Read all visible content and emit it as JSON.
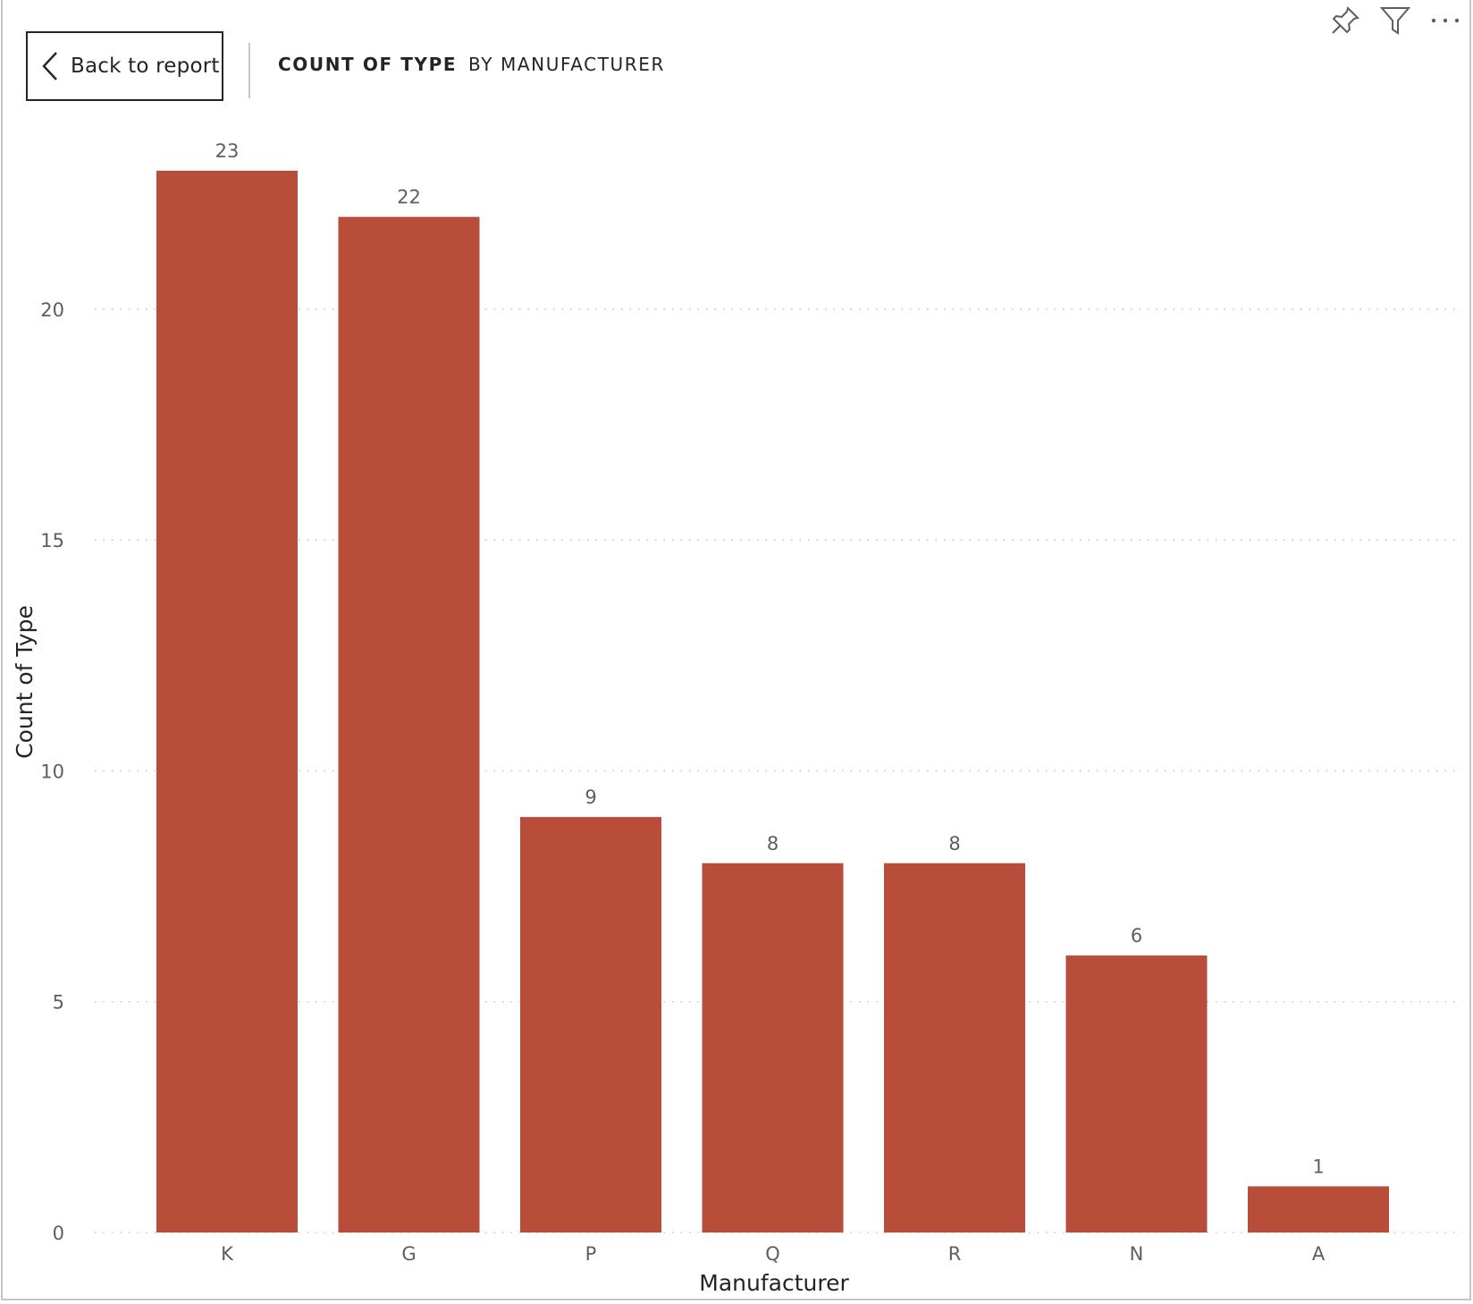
{
  "header": {
    "back_label": "Back to report",
    "title_main": "COUNT OF TYPE",
    "title_sub": "BY MANUFACTURER"
  },
  "icons": {
    "back": "chevron-left-icon",
    "pin": "pin-icon",
    "filter": "filter-icon",
    "more": "more-options-icon"
  },
  "colors": {
    "bar": "#b84e3a",
    "gridline": "#c8c6c4"
  },
  "chart_data": {
    "type": "bar",
    "categories": [
      "K",
      "G",
      "P",
      "Q",
      "R",
      "N",
      "A"
    ],
    "values": [
      23,
      22,
      9,
      8,
      8,
      6,
      1
    ],
    "xlabel": "Manufacturer",
    "ylabel": "Count of Type",
    "ylim": [
      0,
      23
    ],
    "yticks": [
      0,
      5,
      10,
      15,
      20
    ],
    "grid": true,
    "data_labels": true
  }
}
